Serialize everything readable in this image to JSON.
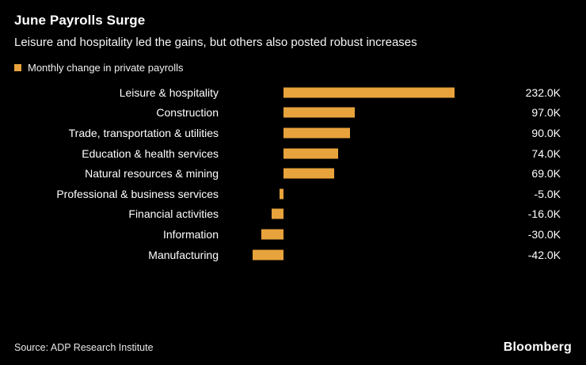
{
  "header": {
    "title": "June Payrolls Surge",
    "subtitle": "Leisure and hospitality led the gains, but others also posted robust increases"
  },
  "legend": {
    "label": "Monthly change in private payrolls",
    "color": "#E8A33C"
  },
  "chart_data": {
    "type": "bar",
    "orientation": "horizontal",
    "title": "June Payrolls Surge",
    "subtitle": "Leisure and hospitality led the gains, but others also posted robust increases",
    "legend_label": "Monthly change in private payrolls",
    "legend_position": "top-left",
    "grid": false,
    "background_color": "#000000",
    "bar_color": "#E8A33C",
    "text_color": "#FFFFFF",
    "unit": "K (thousands of jobs)",
    "xlabel": "",
    "ylabel": "",
    "xlim": [
      -50,
      250
    ],
    "categories": [
      "Leisure & hospitality",
      "Construction",
      "Trade, transportation & utilities",
      "Education & health services",
      "Natural resources & mining",
      "Professional & business services",
      "Financial activities",
      "Information",
      "Manufacturing"
    ],
    "values": [
      232.0,
      97.0,
      90.0,
      74.0,
      69.0,
      -5.0,
      -16.0,
      -30.0,
      -42.0
    ],
    "value_labels": [
      "232.0K",
      "97.0K",
      "90.0K",
      "74.0K",
      "69.0K",
      "-5.0K",
      "-16.0K",
      "-30.0K",
      "-42.0K"
    ]
  },
  "footer": {
    "source": "Source: ADP Research Institute",
    "brand": "Bloomberg"
  }
}
